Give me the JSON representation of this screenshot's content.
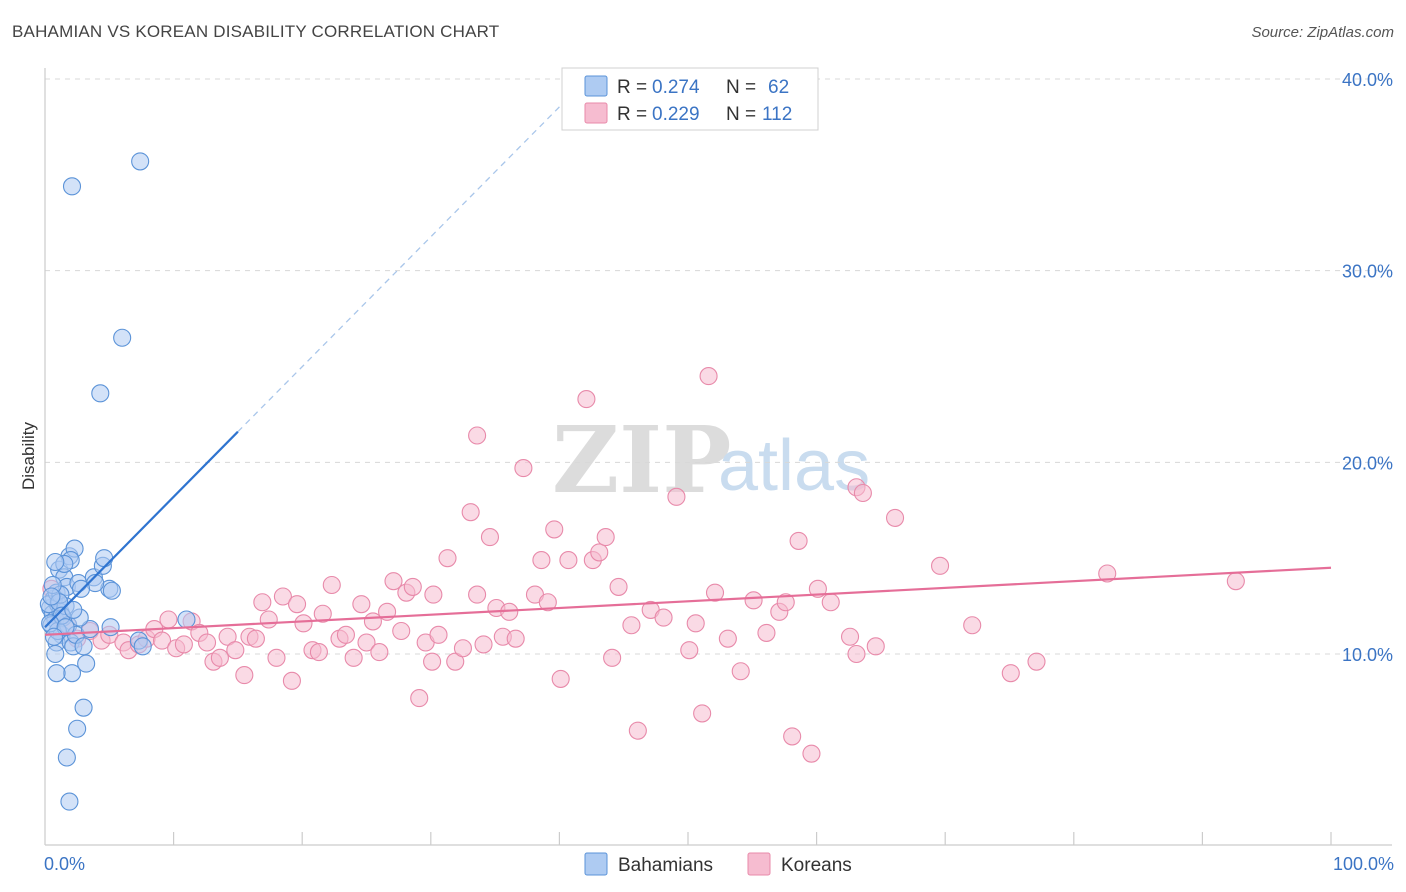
{
  "header": {
    "title": "BAHAMIAN VS KOREAN DISABILITY CORRELATION CHART",
    "source": "Source: ZipAtlas.com"
  },
  "watermark": {
    "zip": "ZIP",
    "atlas": "atlas"
  },
  "colors": {
    "blue_fill": "#aecbf2",
    "blue_stroke": "#5b93d8",
    "blue_line": "#2f74d0",
    "pink_fill": "#f6bcd0",
    "pink_stroke": "#e88aaa",
    "pink_line": "#e56e98",
    "label_blue": "#3b74c4",
    "grid": "#d8d8d8"
  },
  "legend": {
    "rows": [
      {
        "r_label": "R = ",
        "r_value": "0.274",
        "n_label": "N = ",
        "n_value": "62"
      },
      {
        "r_label": "R = ",
        "r_value": "0.229",
        "n_label": "N = ",
        "n_value": "112"
      }
    ]
  },
  "bottom_legend": {
    "items": [
      "Bahamians",
      "Koreans"
    ]
  },
  "chart_data": {
    "type": "scatter",
    "title": "BAHAMIAN VS KOREAN DISABILITY CORRELATION CHART",
    "xlabel": "",
    "ylabel": "Disability",
    "xlim": [
      0,
      100
    ],
    "ylim": [
      0,
      42
    ],
    "x_tick_labels": [
      "0.0%",
      "100.0%"
    ],
    "y_ticks": [
      10,
      20,
      30,
      40
    ],
    "y_tick_labels": [
      "10.0%",
      "20.0%",
      "30.0%",
      "40.0%"
    ],
    "grid": true,
    "legend_position": "top-center",
    "series": [
      {
        "name": "Bahamians",
        "r": 0.274,
        "n": 62,
        "trend": {
          "x0": 0,
          "y0": 11.4,
          "x1": 15,
          "y1": 21.6,
          "dash_to_x": 42,
          "dash_to_y": 39.9
        },
        "points": [
          [
            0.4,
            12.4
          ],
          [
            0.6,
            12.1
          ],
          [
            0.8,
            11.8
          ],
          [
            1.0,
            12.6
          ],
          [
            0.5,
            11.5
          ],
          [
            0.7,
            12.9
          ],
          [
            1.2,
            12.2
          ],
          [
            1.4,
            11.9
          ],
          [
            0.3,
            12.6
          ],
          [
            0.9,
            13.2
          ],
          [
            1.1,
            14.4
          ],
          [
            1.5,
            14.0
          ],
          [
            1.7,
            13.5
          ],
          [
            1.6,
            12.5
          ],
          [
            1.3,
            11.0
          ],
          [
            0.9,
            10.6
          ],
          [
            0.8,
            10.0
          ],
          [
            1.8,
            11.5
          ],
          [
            2.0,
            10.6
          ],
          [
            2.2,
            10.4
          ],
          [
            2.4,
            11.0
          ],
          [
            2.6,
            13.7
          ],
          [
            1.9,
            15.1
          ],
          [
            2.3,
            15.5
          ],
          [
            2.0,
            14.9
          ],
          [
            1.5,
            14.7
          ],
          [
            0.8,
            14.8
          ],
          [
            3.0,
            10.4
          ],
          [
            3.2,
            9.5
          ],
          [
            2.1,
            9.0
          ],
          [
            0.9,
            9.0
          ],
          [
            3.8,
            14.0
          ],
          [
            4.5,
            14.6
          ],
          [
            4.6,
            15.0
          ],
          [
            5.0,
            13.4
          ],
          [
            5.2,
            13.3
          ],
          [
            3.9,
            13.7
          ],
          [
            3.5,
            11.3
          ],
          [
            5.1,
            11.4
          ],
          [
            7.3,
            10.7
          ],
          [
            7.6,
            10.4
          ],
          [
            6.0,
            26.5
          ],
          [
            4.3,
            23.6
          ],
          [
            2.1,
            34.4
          ],
          [
            7.4,
            35.7
          ],
          [
            3.0,
            7.2
          ],
          [
            2.5,
            6.1
          ],
          [
            1.7,
            4.6
          ],
          [
            1.9,
            2.3
          ],
          [
            11.0,
            11.8
          ],
          [
            1.2,
            13.1
          ],
          [
            0.6,
            13.6
          ],
          [
            2.8,
            13.4
          ],
          [
            1.0,
            11.2
          ],
          [
            1.1,
            12.7
          ],
          [
            1.3,
            12.0
          ],
          [
            2.7,
            11.9
          ],
          [
            0.4,
            11.6
          ],
          [
            1.6,
            11.4
          ],
          [
            0.5,
            13.0
          ],
          [
            2.2,
            12.3
          ],
          [
            0.7,
            10.9
          ]
        ]
      },
      {
        "name": "Koreans",
        "r": 0.229,
        "n": 112,
        "trend": {
          "x0": 0,
          "y0": 11.0,
          "x1": 100,
          "y1": 14.5
        },
        "points": [
          [
            0.5,
            13.4
          ],
          [
            1.2,
            11.8
          ],
          [
            1.8,
            11.5
          ],
          [
            2.5,
            10.8
          ],
          [
            3.5,
            11.2
          ],
          [
            4.4,
            10.7
          ],
          [
            5.0,
            11.0
          ],
          [
            6.1,
            10.6
          ],
          [
            6.5,
            10.2
          ],
          [
            7.3,
            10.5
          ],
          [
            7.9,
            10.8
          ],
          [
            8.5,
            11.3
          ],
          [
            9.1,
            10.7
          ],
          [
            9.6,
            11.8
          ],
          [
            10.2,
            10.3
          ],
          [
            10.8,
            10.5
          ],
          [
            11.4,
            11.7
          ],
          [
            12.0,
            11.1
          ],
          [
            12.6,
            10.6
          ],
          [
            13.1,
            9.6
          ],
          [
            13.6,
            9.8
          ],
          [
            14.2,
            10.9
          ],
          [
            14.8,
            10.2
          ],
          [
            15.5,
            8.9
          ],
          [
            15.9,
            10.9
          ],
          [
            16.4,
            10.8
          ],
          [
            16.9,
            12.7
          ],
          [
            17.4,
            11.8
          ],
          [
            18.0,
            9.8
          ],
          [
            18.5,
            13.0
          ],
          [
            19.2,
            8.6
          ],
          [
            19.6,
            12.6
          ],
          [
            20.1,
            11.6
          ],
          [
            20.8,
            10.2
          ],
          [
            21.3,
            10.1
          ],
          [
            21.6,
            12.1
          ],
          [
            22.3,
            13.6
          ],
          [
            22.9,
            10.8
          ],
          [
            23.4,
            11.0
          ],
          [
            24.0,
            9.8
          ],
          [
            24.6,
            12.6
          ],
          [
            25.0,
            10.6
          ],
          [
            25.5,
            11.7
          ],
          [
            26.0,
            10.1
          ],
          [
            26.6,
            12.2
          ],
          [
            27.1,
            13.8
          ],
          [
            27.7,
            11.2
          ],
          [
            28.1,
            13.2
          ],
          [
            28.6,
            13.5
          ],
          [
            29.1,
            7.7
          ],
          [
            29.6,
            10.6
          ],
          [
            30.2,
            13.1
          ],
          [
            30.6,
            11.0
          ],
          [
            31.3,
            15.0
          ],
          [
            31.9,
            9.6
          ],
          [
            32.5,
            10.3
          ],
          [
            33.1,
            17.4
          ],
          [
            33.6,
            21.4
          ],
          [
            34.6,
            16.1
          ],
          [
            35.1,
            12.4
          ],
          [
            35.6,
            10.9
          ],
          [
            36.6,
            10.8
          ],
          [
            37.2,
            19.7
          ],
          [
            38.1,
            13.1
          ],
          [
            38.6,
            14.9
          ],
          [
            39.6,
            16.5
          ],
          [
            40.1,
            8.7
          ],
          [
            40.7,
            14.9
          ],
          [
            42.1,
            23.3
          ],
          [
            42.6,
            14.9
          ],
          [
            43.1,
            15.3
          ],
          [
            43.6,
            16.1
          ],
          [
            44.6,
            13.5
          ],
          [
            46.1,
            6.0
          ],
          [
            47.1,
            12.3
          ],
          [
            48.1,
            11.9
          ],
          [
            49.1,
            18.2
          ],
          [
            50.1,
            10.2
          ],
          [
            50.6,
            11.6
          ],
          [
            51.1,
            6.9
          ],
          [
            51.6,
            24.5
          ],
          [
            52.1,
            13.2
          ],
          [
            53.1,
            10.8
          ],
          [
            54.1,
            9.1
          ],
          [
            55.1,
            12.8
          ],
          [
            56.1,
            11.1
          ],
          [
            57.1,
            12.2
          ],
          [
            58.1,
            5.7
          ],
          [
            58.6,
            15.9
          ],
          [
            59.6,
            4.8
          ],
          [
            60.1,
            13.4
          ],
          [
            61.1,
            12.7
          ],
          [
            62.6,
            10.9
          ],
          [
            63.1,
            18.7
          ],
          [
            63.6,
            18.4
          ],
          [
            63.1,
            10.0
          ],
          [
            64.6,
            10.4
          ],
          [
            66.1,
            17.1
          ],
          [
            69.6,
            14.6
          ],
          [
            72.1,
            11.5
          ],
          [
            75.1,
            9.0
          ],
          [
            77.1,
            9.6
          ],
          [
            82.6,
            14.2
          ],
          [
            92.6,
            13.8
          ],
          [
            45.6,
            11.5
          ],
          [
            44.1,
            9.8
          ],
          [
            39.1,
            12.7
          ],
          [
            34.1,
            10.5
          ],
          [
            30.1,
            9.6
          ],
          [
            36.1,
            12.2
          ],
          [
            33.6,
            13.1
          ],
          [
            57.6,
            12.7
          ]
        ]
      }
    ]
  }
}
